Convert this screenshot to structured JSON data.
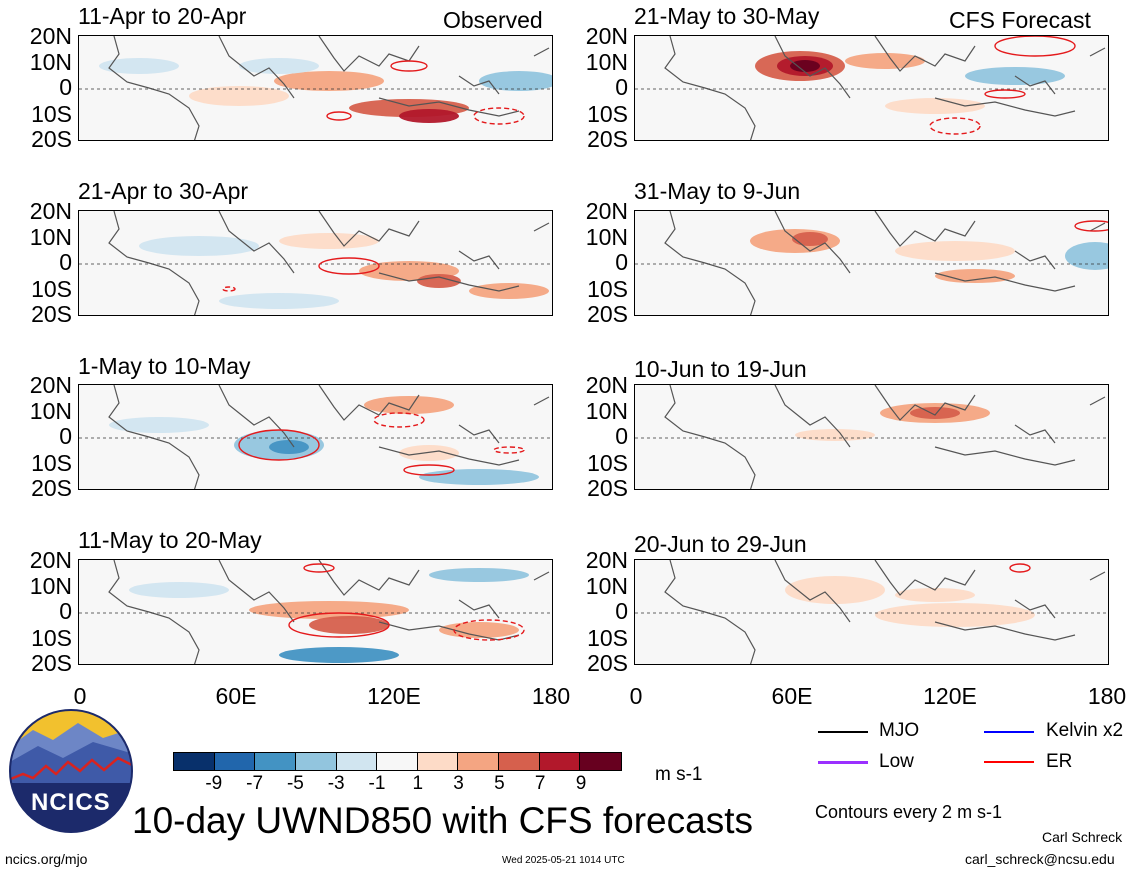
{
  "figure_title": "10-day UWND850 with CFS forecasts",
  "observed_label": "Observed",
  "forecast_label": "CFS Forecast",
  "lat_labels": [
    "20N",
    "10N",
    "0",
    "10S",
    "20S"
  ],
  "lon_labels": [
    "0",
    "60E",
    "120E",
    "180"
  ],
  "panels": [
    {
      "title": "11-Apr to 20-Apr"
    },
    {
      "title": "21-Apr to 30-Apr"
    },
    {
      "title": "1-May to 10-May"
    },
    {
      "title": "11-May to 20-May"
    },
    {
      "title": "21-May to 30-May"
    },
    {
      "title": "31-May to 9-Jun"
    },
    {
      "title": "10-Jun to 19-Jun"
    },
    {
      "title": "20-Jun to 29-Jun"
    }
  ],
  "colorbar": {
    "ticks": [
      "-9",
      "-7",
      "-5",
      "-3",
      "-1",
      "1",
      "3",
      "5",
      "7",
      "9"
    ],
    "units": "m s-1",
    "colors": [
      "#08306b",
      "#2166ac",
      "#4393c3",
      "#92c5de",
      "#d1e5f0",
      "#f7f7f7",
      "#fddbc7",
      "#f4a582",
      "#d6604d",
      "#b2182b",
      "#67001f"
    ]
  },
  "legend": {
    "mjo": "MJO",
    "kelvin": "Kelvin x2",
    "low": "Low",
    "er": "ER",
    "colors": {
      "mjo": "#000000",
      "kelvin": "#0000ff",
      "low": "#9b30ff",
      "er": "#ff0000"
    }
  },
  "contour_note": "Contours every 2 m s-1",
  "logo_text": "NCICS",
  "site": "ncics.org/mjo",
  "timestamp": "Wed 2025-05-21 1014 UTC",
  "author": "Carl Schreck",
  "email": "carl_schreck@ncsu.edu"
}
